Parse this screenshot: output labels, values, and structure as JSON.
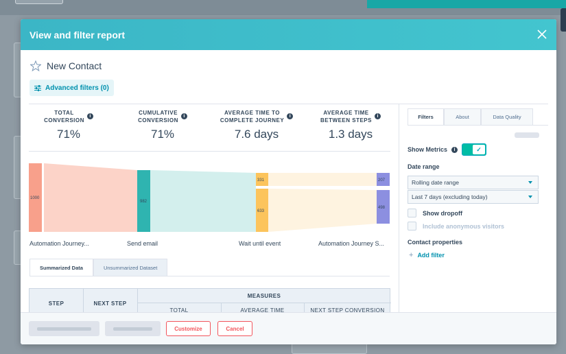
{
  "modal": {
    "title": "View and filter report"
  },
  "contact": {
    "name": "New Contact"
  },
  "advanced_filters": {
    "label": "Advanced filters (0)"
  },
  "metrics": [
    {
      "line1": "TOTAL",
      "line2": "CONVERSION",
      "value": "71%"
    },
    {
      "line1": "CUMULATIVE",
      "line2": "CONVERSION",
      "value": "71%"
    },
    {
      "line1": "AVERAGE TIME TO",
      "line2": "COMPLETE JOURNEY",
      "value": "7.6 days"
    },
    {
      "line1": "AVERAGE TIME",
      "line2": "BETWEEN STEPS",
      "value": "1.3 days"
    }
  ],
  "sankey": {
    "node_labels": [
      "1000",
      "982",
      "331",
      "633",
      "207",
      "498"
    ],
    "step_labels": [
      "Automation Journey...",
      "Send email",
      "Wait until event",
      "Automation Journey S..."
    ],
    "colors": {
      "step1": "#f8a08b",
      "step2": "#2fb4b0",
      "step3": "#fcc45c",
      "step4": "#8c8fe0"
    }
  },
  "data_tabs": [
    "Summarized Data",
    "Unsummarized Dataset"
  ],
  "table": {
    "headers": [
      "STEP",
      "NEXT STEP",
      "MEASURES"
    ],
    "subheaders": [
      "TOTAL",
      "AVERAGE TIME",
      "NEXT STEP CONVERSION"
    ]
  },
  "footer": {
    "customize": "Customize",
    "cancel": "Cancel"
  },
  "right_panel": {
    "tabs": [
      "Filters",
      "About",
      "Data Quality"
    ],
    "show_metrics": "Show Metrics",
    "date_range_label": "Date range",
    "date_range_type": "Rolling date range",
    "date_range_value": "Last 7 days (excluding today)",
    "show_dropoff": "Show dropoff",
    "include_anonymous": "Include anonymous visitors",
    "contact_properties": "Contact properties",
    "add_filter": "Add filter"
  }
}
